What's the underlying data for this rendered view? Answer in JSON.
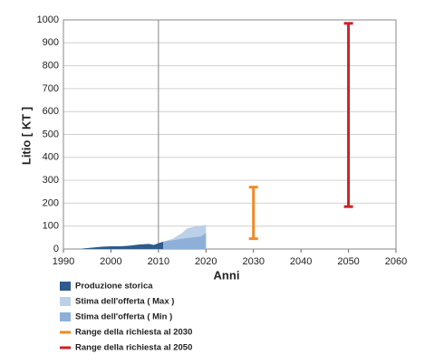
{
  "chart_data": {
    "type": "area",
    "x_label": "Anni",
    "y_label": "Litio [ KT ]",
    "xlim": [
      1990,
      2060
    ],
    "xticks": [
      1990,
      2000,
      2010,
      2020,
      2030,
      2040,
      2050,
      2060
    ],
    "ylim": [
      0,
      1000
    ],
    "yticks": [
      0,
      100,
      200,
      300,
      400,
      500,
      600,
      700,
      800,
      900,
      1000
    ],
    "grid": true,
    "vertical_line": 2010,
    "series": [
      {
        "name": "Produzione storica",
        "kind": "area",
        "color": "#2e5a8c",
        "x": [
          1994,
          1996,
          1998,
          2000,
          2002,
          2004,
          2006,
          2008,
          2009,
          2010,
          2011
        ],
        "values": [
          2,
          6,
          10,
          12,
          12,
          15,
          20,
          22,
          18,
          25,
          32
        ]
      },
      {
        "name": "Stima dell'offerta ( Max )",
        "kind": "area",
        "color": "#bcd0e8",
        "x": [
          2011,
          2013,
          2015,
          2016,
          2018,
          2020
        ],
        "values": [
          32,
          45,
          70,
          90,
          100,
          105
        ]
      },
      {
        "name": "Stima dell'offerta ( Min )",
        "kind": "area",
        "color": "#8eb0d8",
        "x": [
          2011,
          2013,
          2015,
          2017,
          2019,
          2020
        ],
        "values": [
          32,
          38,
          45,
          50,
          55,
          70
        ]
      },
      {
        "name": "Range della richiesta al 2030",
        "kind": "range",
        "color": "#f08a24",
        "x": 2030,
        "low": 45,
        "high": 270
      },
      {
        "name": "Range della richiesta al 2050",
        "kind": "range",
        "color": "#cc2229",
        "x": 2050,
        "low": 185,
        "high": 985
      }
    ]
  }
}
